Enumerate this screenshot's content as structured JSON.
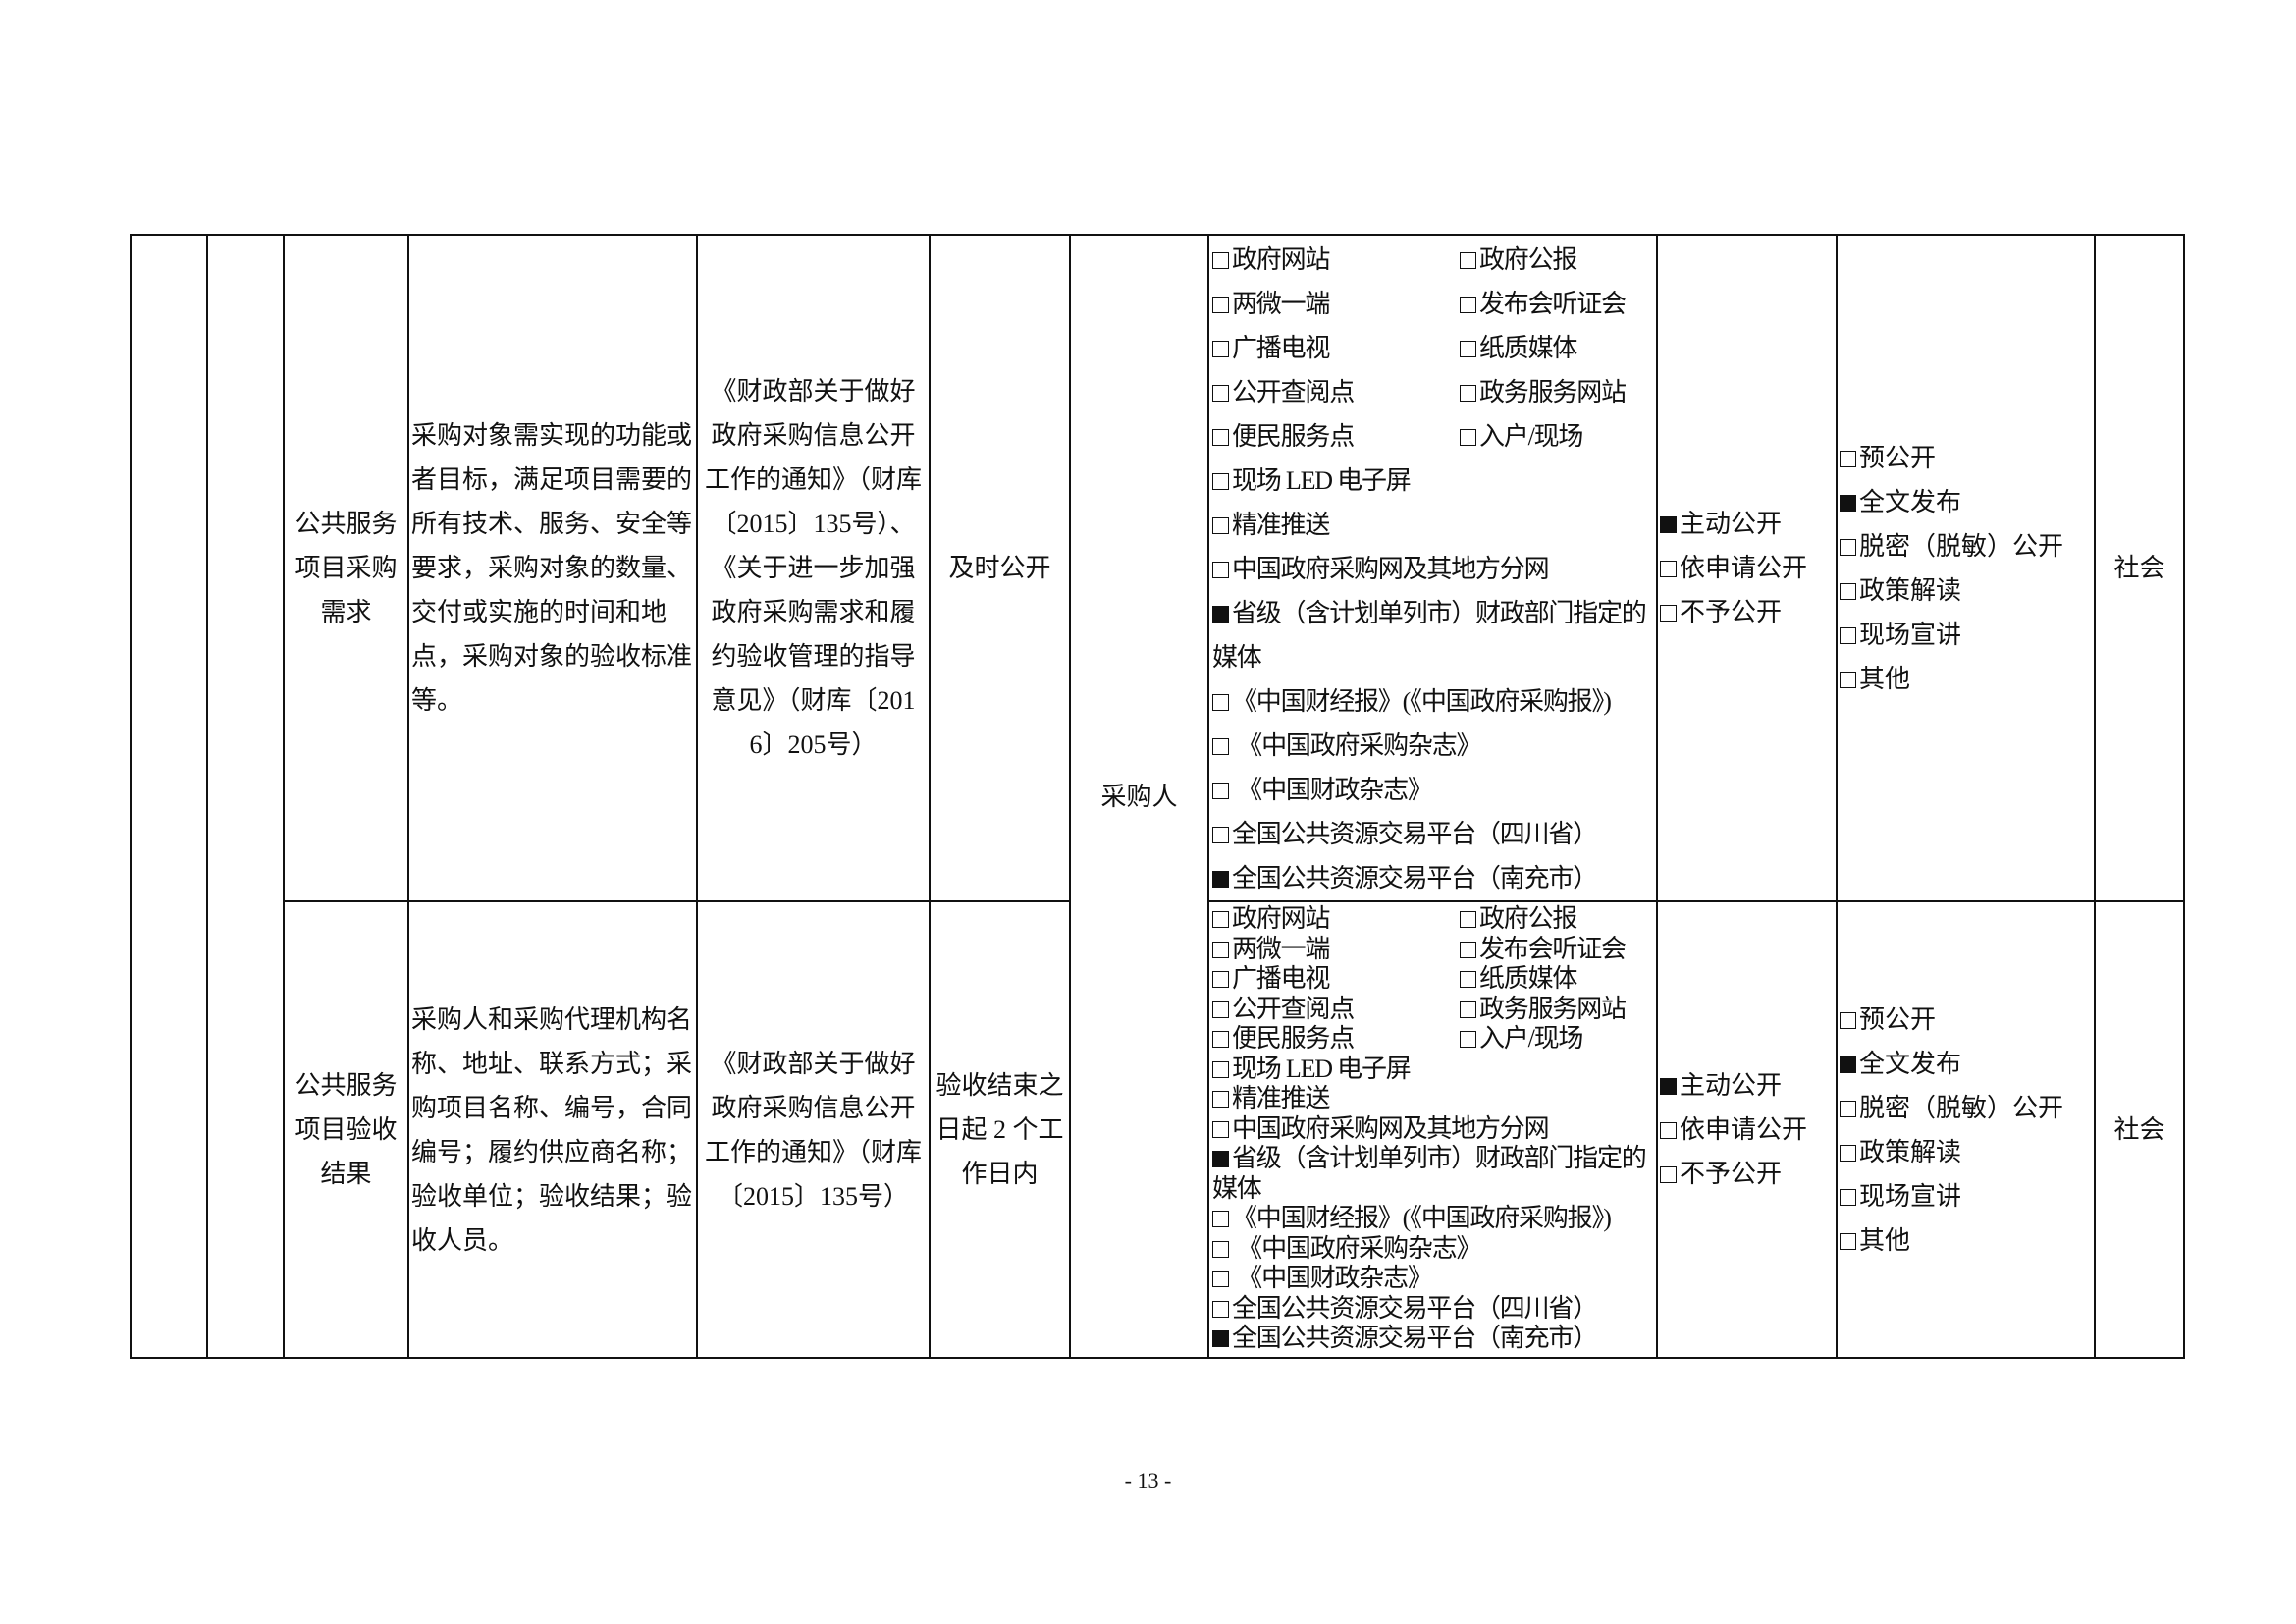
{
  "rows": [
    {
      "item": "公共服务项目采购需求",
      "content": "采购对象需实现的功能或者目标，满足项目需要的所有技术、服务、安全等要求，采购对象的数量、交付或实施的时间和地点，采购对象的验收标准等。",
      "basis": "《财政部关于做好政府采购信息公开工作的通知》（财库〔2015〕135号）、《关于进一步加强政府采购需求和履约验收管理的指导意见》（财库〔2016〕205号）",
      "time_limit": "及时公开",
      "media_grid": [
        {
          "label": "政府网站",
          "checked": false
        },
        {
          "label": "政府公报",
          "checked": false
        },
        {
          "label": "两微一端",
          "checked": false
        },
        {
          "label": "发布会听证会",
          "checked": false
        },
        {
          "label": "广播电视",
          "checked": false
        },
        {
          "label": "纸质媒体",
          "checked": false
        },
        {
          "label": "公开查阅点",
          "checked": false
        },
        {
          "label": "政务服务网站",
          "checked": false
        },
        {
          "label": "便民服务点",
          "checked": false
        },
        {
          "label": "入户/现场",
          "checked": false
        }
      ],
      "media_list": [
        {
          "label": "现场 LED 电子屏",
          "checked": false
        },
        {
          "label": "精准推送",
          "checked": false
        },
        {
          "label": "中国政府采购网及其地方分网",
          "checked": false
        },
        {
          "label": "省级（含计划单列市）财政部门指定的媒体",
          "checked": true
        },
        {
          "label": "《中国财经报》(《中国政府采购报》)",
          "checked": false
        },
        {
          "label": " 《中国政府采购杂志》",
          "checked": false
        },
        {
          "label": " 《中国财政杂志》",
          "checked": false
        },
        {
          "label": "全国公共资源交易平台（四川省）",
          "checked": false
        },
        {
          "label": "全国公共资源交易平台（南充市）",
          "checked": true
        }
      ],
      "mode": [
        {
          "label": "主动公开",
          "checked": true
        },
        {
          "label": "依申请公开",
          "checked": false
        },
        {
          "label": "不予公开",
          "checked": false
        }
      ],
      "form": [
        {
          "label": "预公开",
          "checked": false
        },
        {
          "label": "全文发布",
          "checked": true
        },
        {
          "label": "脱密（脱敏）公开",
          "checked": false
        },
        {
          "label": "政策解读",
          "checked": false
        },
        {
          "label": "现场宣讲",
          "checked": false
        },
        {
          "label": "其他",
          "checked": false
        }
      ],
      "scope": "社会"
    },
    {
      "item": "公共服务项目验收结果",
      "content": "采购人和采购代理机构名称、地址、联系方式；采购项目名称、编号，合同编号；履约供应商名称；验收单位；验收结果；验收人员。",
      "basis": "《财政部关于做好政府采购信息公开工作的通知》（财库〔2015〕135号）",
      "time_limit": "验收结束之日起 2 个工作日内",
      "media_grid": [
        {
          "label": "政府网站",
          "checked": false
        },
        {
          "label": "政府公报",
          "checked": false
        },
        {
          "label": "两微一端",
          "checked": false
        },
        {
          "label": "发布会听证会",
          "checked": false
        },
        {
          "label": "广播电视",
          "checked": false
        },
        {
          "label": "纸质媒体",
          "checked": false
        },
        {
          "label": "公开查阅点",
          "checked": false
        },
        {
          "label": "政务服务网站",
          "checked": false
        },
        {
          "label": "便民服务点",
          "checked": false
        },
        {
          "label": "入户/现场",
          "checked": false
        }
      ],
      "media_list": [
        {
          "label": "现场 LED 电子屏",
          "checked": false
        },
        {
          "label": "精准推送",
          "checked": false
        },
        {
          "label": "中国政府采购网及其地方分网",
          "checked": false
        },
        {
          "label": "省级（含计划单列市）财政部门指定的媒体",
          "checked": true
        },
        {
          "label": "《中国财经报》(《中国政府采购报》)",
          "checked": false
        },
        {
          "label": " 《中国政府采购杂志》",
          "checked": false
        },
        {
          "label": " 《中国财政杂志》",
          "checked": false
        },
        {
          "label": "全国公共资源交易平台（四川省）",
          "checked": false
        },
        {
          "label": "全国公共资源交易平台（南充市）",
          "checked": true
        }
      ],
      "mode": [
        {
          "label": "主动公开",
          "checked": true
        },
        {
          "label": "依申请公开",
          "checked": false
        },
        {
          "label": "不予公开",
          "checked": false
        }
      ],
      "form": [
        {
          "label": "预公开",
          "checked": false
        },
        {
          "label": "全文发布",
          "checked": true
        },
        {
          "label": "脱密（脱敏）公开",
          "checked": false
        },
        {
          "label": "政策解读",
          "checked": false
        },
        {
          "label": "现场宣讲",
          "checked": false
        },
        {
          "label": "其他",
          "checked": false
        }
      ],
      "scope": "社会"
    }
  ],
  "subject": "采购人",
  "page_number": "- 13 -"
}
